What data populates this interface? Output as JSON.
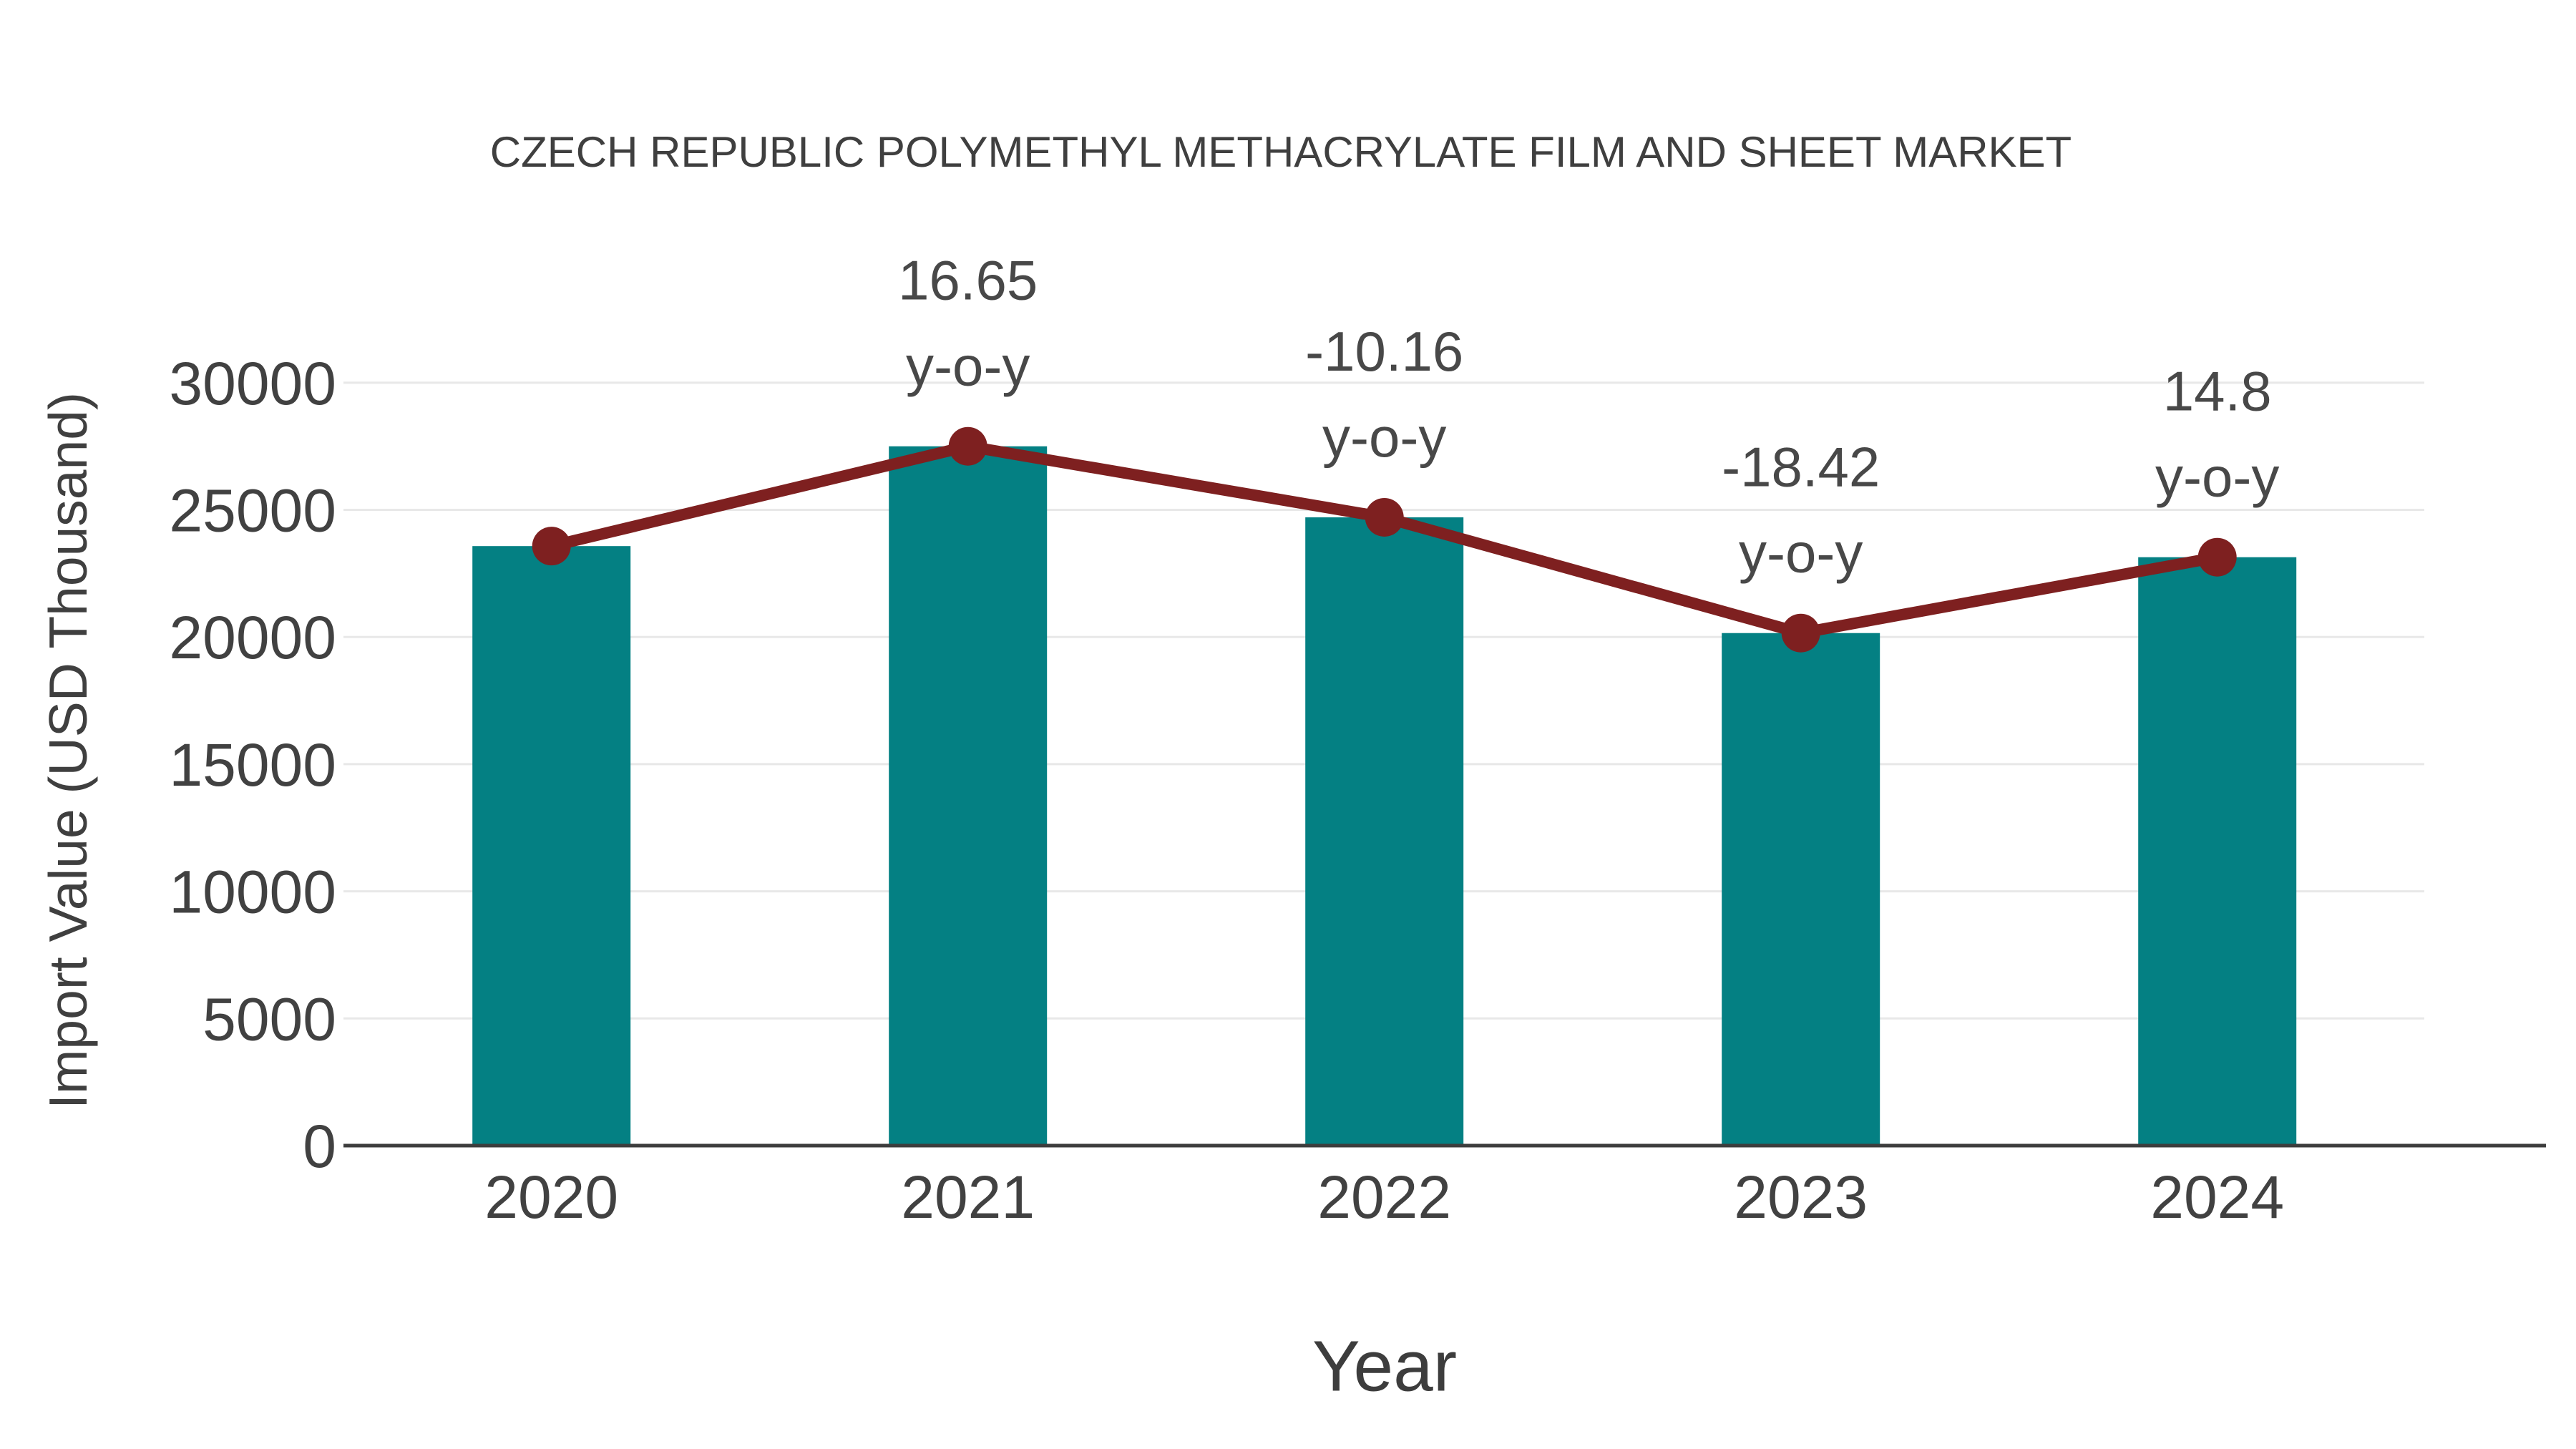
{
  "chart_data": {
    "type": "bar",
    "title": "CZECH REPUBLIC POLYMETHYL METHACRYLATE FILM AND SHEET MARKET",
    "xlabel": "Year",
    "ylabel": "Import Value (USD Thousand)",
    "categories": [
      "2020",
      "2021",
      "2022",
      "2023",
      "2024"
    ],
    "series": [
      {
        "name": "Import Value",
        "type": "bar",
        "values": [
          23575,
          27500,
          24706,
          20155,
          23138
        ]
      },
      {
        "name": "Import Value trend line",
        "type": "line",
        "values": [
          23575,
          27500,
          24706,
          20155,
          23138
        ]
      }
    ],
    "annotations": [
      {
        "category": "2021",
        "line1": "16.65",
        "line2": "y-o-y"
      },
      {
        "category": "2022",
        "line1": "-10.16",
        "line2": "y-o-y"
      },
      {
        "category": "2023",
        "line1": "-18.42",
        "line2": "y-o-y"
      },
      {
        "category": "2024",
        "line1": "14.8",
        "line2": "y-o-y"
      }
    ],
    "yticks": [
      0,
      5000,
      10000,
      15000,
      20000,
      25000,
      30000
    ],
    "ylim": [
      0,
      32500
    ],
    "grid": true,
    "legend": false,
    "colors": {
      "bar": "#048083",
      "line": "#7e2020",
      "marker": "#7e2020",
      "title_text": "#3f3f3f",
      "axis_text": "#414141",
      "annotation_text": "#484848",
      "gridline": "#e8e8e8",
      "axis_line": "#3d3d3d",
      "background": "#ffffff"
    }
  }
}
